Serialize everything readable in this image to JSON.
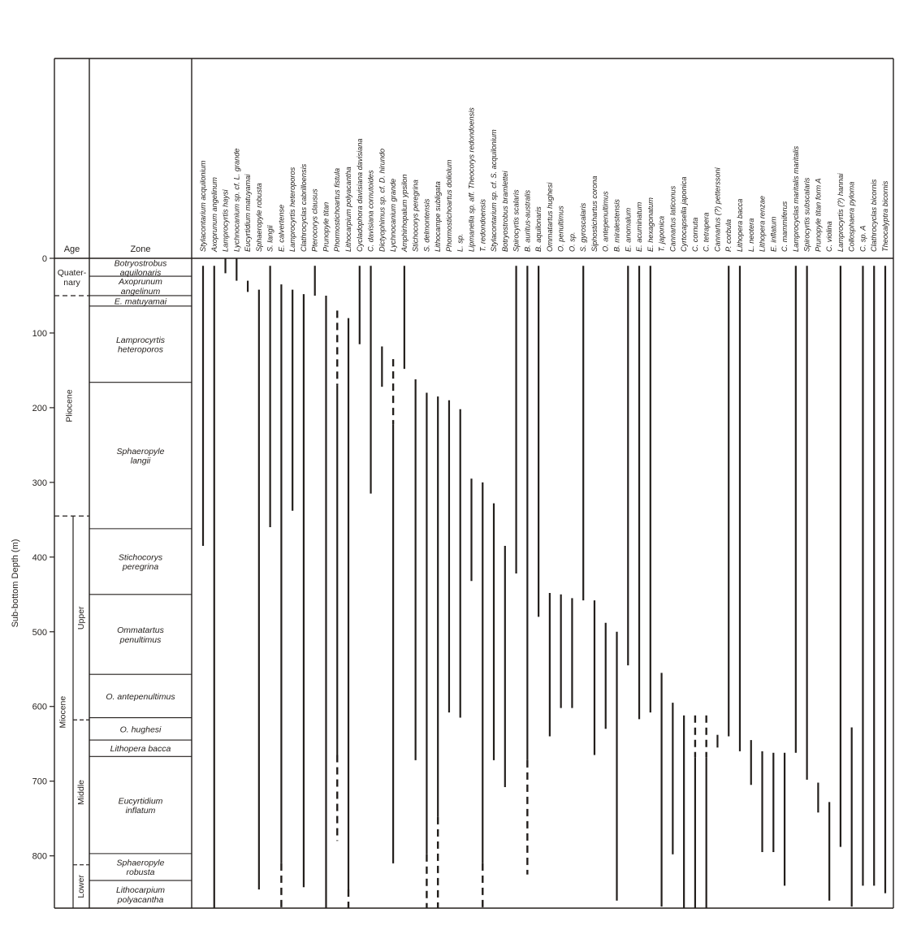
{
  "chart_data": {
    "type": "range",
    "ylabel": "Sub-bottom Depth (m)",
    "ylim": [
      0,
      870
    ],
    "yticks": [
      0,
      100,
      200,
      300,
      400,
      500,
      600,
      700,
      800
    ],
    "headers": {
      "age": "Age",
      "zone": "Zone"
    },
    "ages": [
      {
        "label": "Quater-\nnary",
        "top": 0,
        "bottom": 50
      },
      {
        "label": "Pliocene",
        "top": 50,
        "bottom": 345
      },
      {
        "label": "Miocene",
        "top": 345,
        "bottom": 870
      }
    ],
    "subages": [
      {
        "label": "Upper",
        "top": 345,
        "bottom": 618
      },
      {
        "label": "Middle",
        "top": 618,
        "bottom": 812
      },
      {
        "label": "Lower",
        "top": 812,
        "bottom": 870
      }
    ],
    "zones": [
      {
        "name": "Botryostrobus\naquilonaris",
        "top": 0,
        "bottom": 24
      },
      {
        "name": "Axoprunum\nangelinum",
        "top": 24,
        "bottom": 50
      },
      {
        "name": "E. matuyamai",
        "top": 50,
        "bottom": 64
      },
      {
        "name": "Lamprocyrtis\nheteroporos",
        "top": 64,
        "bottom": 166
      },
      {
        "name": "Sphaeropyle\nlangii",
        "top": 166,
        "bottom": 362
      },
      {
        "name": "Stichocorys\nperegrina",
        "top": 362,
        "bottom": 450
      },
      {
        "name": "Ommatartus\npenultimus",
        "top": 450,
        "bottom": 557
      },
      {
        "name": "O. antepenultimus",
        "top": 557,
        "bottom": 615
      },
      {
        "name": "O. hughesi",
        "top": 615,
        "bottom": 645
      },
      {
        "name": "Lithopera bacca",
        "top": 645,
        "bottom": 667
      },
      {
        "name": "Eucyrtidium\ninflatum",
        "top": 667,
        "bottom": 797
      },
      {
        "name": "Sphaeropyle\nrobusta",
        "top": 797,
        "bottom": 833
      },
      {
        "name": "Lithocarpium\npolyacantha",
        "top": 833,
        "bottom": 870
      }
    ],
    "series": [
      {
        "name": "Stylacontarium acquilonium",
        "ranges": [
          [
            10,
            385
          ]
        ]
      },
      {
        "name": "Axoprunum angelinum",
        "ranges": [
          [
            10,
            870
          ]
        ]
      },
      {
        "name": "Lamprocyrtis haysi",
        "ranges": [
          [
            0,
            20
          ]
        ]
      },
      {
        "name": "Lychnocanium sp. cf. L. grande",
        "ranges": [
          [
            0,
            30
          ]
        ]
      },
      {
        "name": "Eucyrtidium matuyamai",
        "ranges": [
          [
            30,
            45
          ]
        ]
      },
      {
        "name": "Sphaeropyle robusta",
        "ranges": [
          [
            42,
            845
          ]
        ]
      },
      {
        "name": "S. langii",
        "ranges": [
          [
            10,
            360
          ]
        ]
      },
      {
        "name": "E. calvertense",
        "ranges": [
          [
            35,
            810
          ],
          [
            810,
            870,
            "dashed"
          ]
        ]
      },
      {
        "name": "Lamprocyrtis heteroporos",
        "ranges": [
          [
            42,
            338
          ]
        ]
      },
      {
        "name": "Clathrocyclas cabrilloensis",
        "ranges": [
          [
            48,
            842
          ]
        ]
      },
      {
        "name": "Pterocorys clausus",
        "ranges": [
          [
            10,
            50
          ]
        ]
      },
      {
        "name": "Prunopyle titan",
        "ranges": [
          [
            50,
            870
          ]
        ]
      },
      {
        "name": "Phormostichoartus fistula",
        "ranges": [
          [
            70,
            170,
            "dashed"
          ],
          [
            170,
            665
          ],
          [
            665,
            780,
            "dashed"
          ]
        ]
      },
      {
        "name": "Lithocarpium polyacantha",
        "ranges": [
          [
            80,
            845
          ],
          [
            845,
            870,
            "dashed"
          ]
        ]
      },
      {
        "name": "Cycladophora davisiana davisiana",
        "ranges": [
          [
            10,
            115
          ]
        ]
      },
      {
        "name": "C. davisiana cornutoides",
        "ranges": [
          [
            10,
            315
          ]
        ]
      },
      {
        "name": "Dictyophimus sp. cf. D. hirundo",
        "ranges": [
          [
            118,
            172
          ]
        ]
      },
      {
        "name": "Lychnocanium grande",
        "ranges": [
          [
            135,
            222,
            "dashed"
          ],
          [
            222,
            810
          ]
        ]
      },
      {
        "name": "Amphirhopalum ypsilon",
        "ranges": [
          [
            10,
            148
          ]
        ]
      },
      {
        "name": "Stichocorys peregrina",
        "ranges": [
          [
            162,
            672
          ]
        ]
      },
      {
        "name": "S. delmontensis",
        "ranges": [
          [
            180,
            798
          ],
          [
            798,
            870,
            "dashed"
          ]
        ]
      },
      {
        "name": "Lithocampe subligata",
        "ranges": [
          [
            185,
            748
          ],
          [
            748,
            870,
            "dashed"
          ]
        ]
      },
      {
        "name": "Phormostichoartus doliolum",
        "ranges": [
          [
            190,
            608
          ]
        ]
      },
      {
        "name": "L. sp.",
        "ranges": [
          [
            202,
            615
          ]
        ]
      },
      {
        "name": "Lipmanella sp. aff. Theocorys redondoensis",
        "ranges": [
          [
            295,
            432
          ]
        ]
      },
      {
        "name": "T. redondoensis",
        "ranges": [
          [
            300,
            810
          ],
          [
            810,
            870,
            "dashed"
          ]
        ]
      },
      {
        "name": "Stylacontarium sp. cf. S. acquilonium",
        "ranges": [
          [
            328,
            672
          ]
        ]
      },
      {
        "name": "Botryostrobus bramlettei",
        "ranges": [
          [
            385,
            708
          ]
        ]
      },
      {
        "name": "Spirocyrtis scalaris",
        "ranges": [
          [
            10,
            422
          ]
        ]
      },
      {
        "name": "B. auritus-australis",
        "ranges": [
          [
            10,
            672
          ],
          [
            672,
            825,
            "dashed"
          ]
        ]
      },
      {
        "name": "B. aquilonaris",
        "ranges": [
          [
            10,
            480
          ]
        ]
      },
      {
        "name": "Ommatartus hughesi",
        "ranges": [
          [
            448,
            640
          ]
        ]
      },
      {
        "name": "O. penultimus",
        "ranges": [
          [
            450,
            602
          ]
        ]
      },
      {
        "name": "O. sp.",
        "ranges": [
          [
            455,
            602
          ]
        ]
      },
      {
        "name": "S. gyroscalaris",
        "ranges": [
          [
            10,
            458
          ]
        ]
      },
      {
        "name": "Siphostichartus corona",
        "ranges": [
          [
            458,
            665
          ]
        ]
      },
      {
        "name": "O. antepenultimus",
        "ranges": [
          [
            488,
            630
          ]
        ]
      },
      {
        "name": "B. miralestensis",
        "ranges": [
          [
            500,
            860
          ]
        ]
      },
      {
        "name": "E. anomalum",
        "ranges": [
          [
            10,
            545
          ]
        ]
      },
      {
        "name": "E. acuminatum",
        "ranges": [
          [
            10,
            617
          ]
        ]
      },
      {
        "name": "E. hexagonatum",
        "ranges": [
          [
            10,
            608
          ]
        ]
      },
      {
        "name": "T. japonica",
        "ranges": [
          [
            555,
            868
          ]
        ]
      },
      {
        "name": "Cannartus laticonus",
        "ranges": [
          [
            595,
            798
          ]
        ]
      },
      {
        "name": "Cyrtocapsella japonica",
        "ranges": [
          [
            612,
            870
          ]
        ]
      },
      {
        "name": "C. cornuta",
        "ranges": [
          [
            612,
            668,
            "dashed"
          ],
          [
            668,
            870
          ]
        ]
      },
      {
        "name": "C. tetrapera",
        "ranges": [
          [
            612,
            668,
            "dashed"
          ],
          [
            668,
            870
          ]
        ]
      },
      {
        "name": "Cannartus (?) petterssoni",
        "ranges": [
          [
            638,
            655
          ]
        ]
      },
      {
        "name": "P. corbula",
        "ranges": [
          [
            10,
            640
          ]
        ]
      },
      {
        "name": "Lithopera bacca",
        "ranges": [
          [
            10,
            660
          ]
        ]
      },
      {
        "name": "L. neotera",
        "ranges": [
          [
            645,
            705
          ]
        ]
      },
      {
        "name": "Lithopera renzae",
        "ranges": [
          [
            660,
            795
          ]
        ]
      },
      {
        "name": "E. inflatum",
        "ranges": [
          [
            662,
            795
          ]
        ]
      },
      {
        "name": "C. mammiferus",
        "ranges": [
          [
            662,
            840
          ]
        ]
      },
      {
        "name": "Lamprocyclas maritalis maritalis",
        "ranges": [
          [
            10,
            662
          ]
        ]
      },
      {
        "name": "Spirocyrtis subscalaris",
        "ranges": [
          [
            10,
            698
          ]
        ]
      },
      {
        "name": "Prunopyle titan form A",
        "ranges": [
          [
            702,
            742
          ]
        ]
      },
      {
        "name": "C. violina",
        "ranges": [
          [
            728,
            860
          ]
        ]
      },
      {
        "name": "Lamprocyrtis (?) hannai",
        "ranges": [
          [
            10,
            788
          ]
        ]
      },
      {
        "name": "Collosphaera pyloma",
        "ranges": [
          [
            628,
            868
          ]
        ]
      },
      {
        "name": "C. sp. A",
        "ranges": [
          [
            10,
            840
          ]
        ]
      },
      {
        "name": "Clathrocyclas bicornis",
        "ranges": [
          [
            10,
            840
          ]
        ]
      },
      {
        "name": "Theocalyptra bicornis",
        "ranges": [
          [
            10,
            850
          ]
        ]
      }
    ]
  }
}
